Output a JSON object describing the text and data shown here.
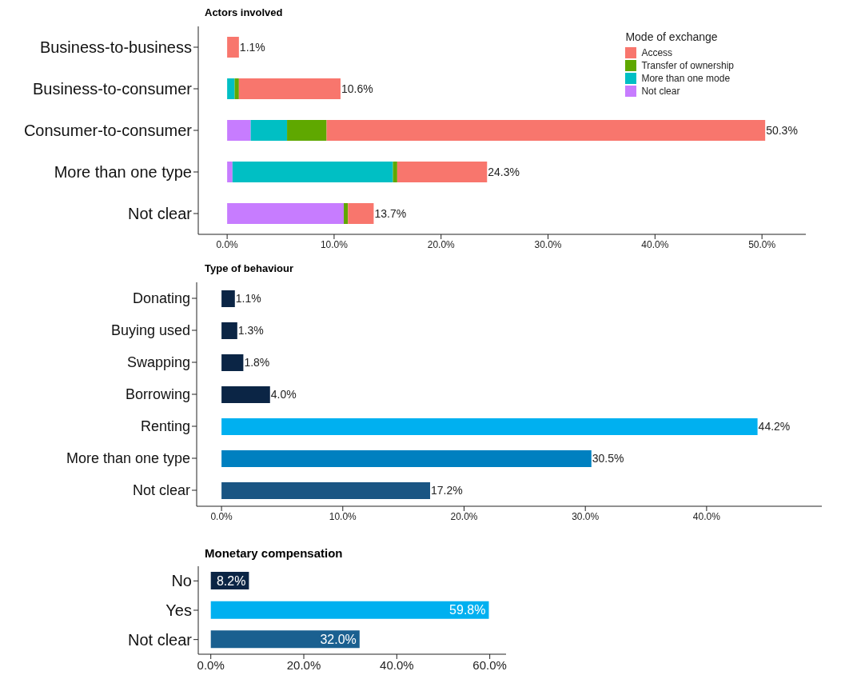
{
  "chart_data": [
    {
      "type": "bar",
      "title": "Actors involved",
      "orientation": "horizontal",
      "stacked": true,
      "categories": [
        "Business-to-business",
        "Business-to-consumer",
        "Consumer-to-consumer",
        "More than one type",
        "Not clear"
      ],
      "series": [
        {
          "name": "Not clear",
          "color": "#c77cff",
          "values": [
            0,
            0,
            2.2,
            0.5,
            10.9
          ]
        },
        {
          "name": "More than one mode",
          "color": "#00bfc4",
          "values": [
            0,
            0.7,
            3.4,
            15.0,
            0
          ]
        },
        {
          "name": "Transfer of ownership",
          "color": "#5fa800",
          "values": [
            0,
            0.4,
            3.7,
            0.4,
            0.4
          ]
        },
        {
          "name": "Access",
          "color": "#f8766d",
          "values": [
            1.1,
            9.5,
            41.0,
            8.4,
            2.4
          ]
        }
      ],
      "totals": [
        "1.1%",
        "10.6%",
        "50.3%",
        "24.3%",
        "13.7%"
      ],
      "xlim": [
        -2.7,
        54.1
      ],
      "xticks": [
        {
          "value": 0,
          "label": "0.0%"
        },
        {
          "value": 10,
          "label": "10.0%"
        },
        {
          "value": 20,
          "label": "20.0%"
        },
        {
          "value": 30,
          "label": "30.0%"
        },
        {
          "value": 40,
          "label": "40.0%"
        },
        {
          "value": 50,
          "label": "50.0%"
        }
      ],
      "legend": "top right",
      "legend_title": "Mode of exchange"
    },
    {
      "type": "bar",
      "title": "Type of behaviour",
      "orientation": "horizontal",
      "categories": [
        "Donating",
        "Buying used",
        "Swapping",
        "Borrowing",
        "Renting",
        "More than one type",
        "Not clear"
      ],
      "values": [
        1.1,
        1.3,
        1.8,
        4.0,
        44.2,
        30.5,
        17.2
      ],
      "colors": [
        "#0b2545",
        "#0b2545",
        "#0b2545",
        "#0b2545",
        "#00b0f0",
        "#0080c0",
        "#1a5583"
      ],
      "value_labels": [
        "1.1%",
        "1.3%",
        "1.8%",
        "4.0%",
        "44.2%",
        "30.5%",
        "17.2%"
      ],
      "xlim": [
        -2.05,
        49.5
      ],
      "xticks": [
        {
          "value": 0,
          "label": "0.0%"
        },
        {
          "value": 10,
          "label": "10.0%"
        },
        {
          "value": 20,
          "label": "20.0%"
        },
        {
          "value": 30,
          "label": "30.0%"
        },
        {
          "value": 40,
          "label": "40.0%"
        }
      ]
    },
    {
      "type": "bar",
      "title": "Monetary compensation",
      "orientation": "horizontal",
      "categories": [
        "No",
        "Yes",
        "Not clear"
      ],
      "values": [
        8.2,
        59.8,
        32.0
      ],
      "colors": [
        "#0b2545",
        "#00b0f0",
        "#1a6090"
      ],
      "value_labels": [
        "8.2%",
        "59.8%",
        "32.0%"
      ],
      "xlim": [
        -2.7,
        63.5
      ],
      "xticks": [
        {
          "value": 0,
          "label": "0.0%"
        },
        {
          "value": 20,
          "label": "20.0%"
        },
        {
          "value": 40,
          "label": "40.0%"
        },
        {
          "value": 60,
          "label": "60.0%"
        }
      ]
    }
  ]
}
